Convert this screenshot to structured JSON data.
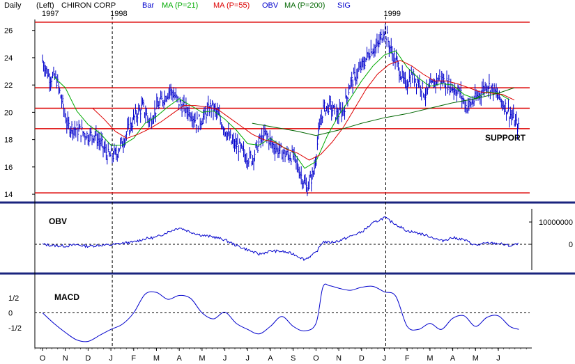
{
  "header": {
    "period": "Daily",
    "axis_side": "(Left)",
    "company": "CHIRON CORP",
    "legend": [
      {
        "label": "Bar",
        "color": "#0000cc"
      },
      {
        "label": "MA (P=21)",
        "color": "#00aa00"
      },
      {
        "label": "MA (P=55)",
        "color": "#dd0000"
      },
      {
        "label": "OBV",
        "color": "#0000cc"
      },
      {
        "label": "MA (P=200)",
        "color": "#006600"
      },
      {
        "label": "SIG",
        "color": "#0000cc"
      }
    ]
  },
  "chart_data": [
    {
      "type": "bar",
      "panel": "price",
      "description_unit": "USD per share",
      "year_labels": [
        {
          "label": "1997",
          "index": 0
        },
        {
          "label": "1998",
          "index": 3
        },
        {
          "label": "1999",
          "index": 15
        }
      ],
      "x_ticks": [
        "O",
        "N",
        "D",
        "J",
        "F",
        "M",
        "A",
        "M",
        "J",
        "J",
        "A",
        "S",
        "O",
        "N",
        "D",
        "J",
        "F",
        "M",
        "A",
        "M",
        "J"
      ],
      "y_ticks": [
        14,
        16,
        18,
        20,
        22,
        24,
        26
      ],
      "ylim": [
        13.8,
        26.8
      ],
      "support_levels": [
        14.1,
        18.8,
        20.3,
        21.8,
        26.6
      ],
      "annotation": "SUPPORT",
      "series": [
        {
          "name": "Bar",
          "points": [
            [
              0,
              23.8
            ],
            [
              0.3,
              22.6
            ],
            [
              0.6,
              22.5
            ],
            [
              0.9,
              20.5
            ],
            [
              1.1,
              19.0
            ],
            [
              1.4,
              18.8
            ],
            [
              1.7,
              18.6
            ],
            [
              2.0,
              18.3
            ],
            [
              2.3,
              18.4
            ],
            [
              2.6,
              17.6
            ],
            [
              2.9,
              16.8
            ],
            [
              3.2,
              16.9
            ],
            [
              3.5,
              17.8
            ],
            [
              3.8,
              18.8
            ],
            [
              4.1,
              19.8
            ],
            [
              4.4,
              20.4
            ],
            [
              4.7,
              19.3
            ],
            [
              5.0,
              20.3
            ],
            [
              5.3,
              21.0
            ],
            [
              5.6,
              21.7
            ],
            [
              5.9,
              20.9
            ],
            [
              6.2,
              20.3
            ],
            [
              6.5,
              20.0
            ],
            [
              6.8,
              19.2
            ],
            [
              7.1,
              19.7
            ],
            [
              7.4,
              20.5
            ],
            [
              7.7,
              19.8
            ],
            [
              8.0,
              18.8
            ],
            [
              8.3,
              17.8
            ],
            [
              8.6,
              17.5
            ],
            [
              8.9,
              16.8
            ],
            [
              9.2,
              16.6
            ],
            [
              9.5,
              17.8
            ],
            [
              9.8,
              18.4
            ],
            [
              10.1,
              17.6
            ],
            [
              10.4,
              17.2
            ],
            [
              10.7,
              16.9
            ],
            [
              11.0,
              16.8
            ],
            [
              11.3,
              15.6
            ],
            [
              11.6,
              14.4
            ],
            [
              11.9,
              15.6
            ],
            [
              12.1,
              18.2
            ],
            [
              12.3,
              20.2
            ],
            [
              12.6,
              20.5
            ],
            [
              12.9,
              19.8
            ],
            [
              13.2,
              20.1
            ],
            [
              13.5,
              22.1
            ],
            [
              13.8,
              22.8
            ],
            [
              14.1,
              23.6
            ],
            [
              14.4,
              24.6
            ],
            [
              14.7,
              24.8
            ],
            [
              15.0,
              26.1
            ],
            [
              15.3,
              24.5
            ],
            [
              15.6,
              23.4
            ],
            [
              15.9,
              22.0
            ],
            [
              16.2,
              22.7
            ],
            [
              16.5,
              22.3
            ],
            [
              16.8,
              21.3
            ],
            [
              17.1,
              22.0
            ],
            [
              17.4,
              22.5
            ],
            [
              17.7,
              22.2
            ],
            [
              18.0,
              21.8
            ],
            [
              18.3,
              21.5
            ],
            [
              18.6,
              20.4
            ],
            [
              18.9,
              20.8
            ],
            [
              19.2,
              21.4
            ],
            [
              19.5,
              22.1
            ],
            [
              19.8,
              21.6
            ],
            [
              20.1,
              20.9
            ],
            [
              20.4,
              20.2
            ],
            [
              20.7,
              19.4
            ],
            [
              20.9,
              18.8
            ]
          ]
        },
        {
          "name": "MA (P=21)",
          "points": [
            [
              0.5,
              22.6
            ],
            [
              1.0,
              21.8
            ],
            [
              1.5,
              20.1
            ],
            [
              2.0,
              19.1
            ],
            [
              2.5,
              18.5
            ],
            [
              3.0,
              17.6
            ],
            [
              3.5,
              17.6
            ],
            [
              4.0,
              18.1
            ],
            [
              4.5,
              19.2
            ],
            [
              5.0,
              19.7
            ],
            [
              5.5,
              20.4
            ],
            [
              6.0,
              21.0
            ],
            [
              6.5,
              20.5
            ],
            [
              7.0,
              20.0
            ],
            [
              7.5,
              20.1
            ],
            [
              8.0,
              19.5
            ],
            [
              8.5,
              18.7
            ],
            [
              9.0,
              17.7
            ],
            [
              9.5,
              17.6
            ],
            [
              10.0,
              18.1
            ],
            [
              10.5,
              17.5
            ],
            [
              11.0,
              17.1
            ],
            [
              11.5,
              15.9
            ],
            [
              12.0,
              16.4
            ],
            [
              12.5,
              18.3
            ],
            [
              13.0,
              19.8
            ],
            [
              13.5,
              21.0
            ],
            [
              14.0,
              22.3
            ],
            [
              14.5,
              23.4
            ],
            [
              15.0,
              24.2
            ],
            [
              15.5,
              24.5
            ],
            [
              16.0,
              23.3
            ],
            [
              16.5,
              22.5
            ],
            [
              17.0,
              21.9
            ],
            [
              17.5,
              22.1
            ],
            [
              18.0,
              22.0
            ],
            [
              18.5,
              21.3
            ],
            [
              19.0,
              21.0
            ],
            [
              19.5,
              21.5
            ],
            [
              20.0,
              21.4
            ],
            [
              20.5,
              20.9
            ]
          ]
        },
        {
          "name": "MA (P=55)",
          "points": [
            [
              2.2,
              20.3
            ],
            [
              2.7,
              19.5
            ],
            [
              3.2,
              18.6
            ],
            [
              3.7,
              18.1
            ],
            [
              4.2,
              18.4
            ],
            [
              4.7,
              18.8
            ],
            [
              5.2,
              19.3
            ],
            [
              5.7,
              19.9
            ],
            [
              6.2,
              20.5
            ],
            [
              6.7,
              20.5
            ],
            [
              7.2,
              20.4
            ],
            [
              7.7,
              20.2
            ],
            [
              8.2,
              19.6
            ],
            [
              8.7,
              19.0
            ],
            [
              9.2,
              18.4
            ],
            [
              9.7,
              18.0
            ],
            [
              10.2,
              17.8
            ],
            [
              10.7,
              17.3
            ],
            [
              11.2,
              17.0
            ],
            [
              11.7,
              16.5
            ],
            [
              12.2,
              16.9
            ],
            [
              12.7,
              17.8
            ],
            [
              13.2,
              18.9
            ],
            [
              13.7,
              20.3
            ],
            [
              14.2,
              21.7
            ],
            [
              14.7,
              22.8
            ],
            [
              15.2,
              23.5
            ],
            [
              15.7,
              23.8
            ],
            [
              16.2,
              23.4
            ],
            [
              16.7,
              22.8
            ],
            [
              17.2,
              22.3
            ],
            [
              17.7,
              22.3
            ],
            [
              18.2,
              22.1
            ],
            [
              18.7,
              21.8
            ],
            [
              19.2,
              21.5
            ],
            [
              19.7,
              21.4
            ],
            [
              20.2,
              21.3
            ],
            [
              20.7,
              20.9
            ]
          ]
        },
        {
          "name": "MA (P=200)",
          "points": [
            [
              9.2,
              19.2
            ],
            [
              10.2,
              18.9
            ],
            [
              11.2,
              18.6
            ],
            [
              12.0,
              18.3
            ],
            [
              13.0,
              18.7
            ],
            [
              14.0,
              19.2
            ],
            [
              15.0,
              19.6
            ],
            [
              16.0,
              19.9
            ],
            [
              17.0,
              20.3
            ],
            [
              18.0,
              20.7
            ],
            [
              19.0,
              21.0
            ],
            [
              20.0,
              21.4
            ],
            [
              20.7,
              21.8
            ]
          ]
        }
      ]
    },
    {
      "type": "line",
      "panel": "obv",
      "y_ticks": [
        {
          "label": "10000000",
          "value": 10000000
        },
        {
          "label": "0",
          "value": 0
        }
      ],
      "ylim": [
        -10000000,
        15000000
      ],
      "baseline": 0,
      "series": [
        {
          "name": "OBV",
          "points": [
            [
              0,
              0
            ],
            [
              0.5,
              -600000
            ],
            [
              1.0,
              -800000
            ],
            [
              1.5,
              -200000
            ],
            [
              2.0,
              -900000
            ],
            [
              2.5,
              -400000
            ],
            [
              3.0,
              -300000
            ],
            [
              3.5,
              500000
            ],
            [
              4.0,
              1000000
            ],
            [
              4.5,
              2500000
            ],
            [
              5.0,
              3200000
            ],
            [
              5.5,
              5500000
            ],
            [
              6.0,
              7500000
            ],
            [
              6.5,
              5500000
            ],
            [
              7.0,
              4000000
            ],
            [
              7.5,
              3300000
            ],
            [
              8.0,
              2000000
            ],
            [
              8.5,
              -500000
            ],
            [
              9.0,
              -2500000
            ],
            [
              9.5,
              -4500000
            ],
            [
              10.0,
              -3000000
            ],
            [
              10.5,
              -3200000
            ],
            [
              11.0,
              -4300000
            ],
            [
              11.5,
              -6800000
            ],
            [
              12.0,
              -3800000
            ],
            [
              12.3,
              1200000
            ],
            [
              12.6,
              800000
            ],
            [
              13.0,
              1500000
            ],
            [
              13.5,
              3500000
            ],
            [
              14.0,
              5500000
            ],
            [
              14.5,
              9500000
            ],
            [
              15.0,
              12000000
            ],
            [
              15.5,
              9000000
            ],
            [
              16.0,
              6000000
            ],
            [
              16.5,
              5000000
            ],
            [
              17.0,
              3500000
            ],
            [
              17.5,
              1500000
            ],
            [
              18.0,
              3000000
            ],
            [
              18.5,
              2000000
            ],
            [
              19.0,
              -500000
            ],
            [
              19.5,
              500000
            ],
            [
              20.0,
              400000
            ],
            [
              20.5,
              -700000
            ],
            [
              20.9,
              200000
            ]
          ]
        }
      ]
    },
    {
      "type": "line",
      "panel": "macd",
      "title": "MACD",
      "y_ticks": [
        {
          "label": "1/2",
          "value": 0.5
        },
        {
          "label": "0",
          "value": 0
        },
        {
          "label": "-1/2",
          "value": -0.5
        }
      ],
      "ylim": [
        -1.1,
        1.1
      ],
      "baseline": 0,
      "series": [
        {
          "name": "MACD",
          "points": [
            [
              0,
              0
            ],
            [
              0.5,
              -0.35
            ],
            [
              1.0,
              -0.65
            ],
            [
              1.5,
              -0.9
            ],
            [
              2.0,
              -0.95
            ],
            [
              2.5,
              -0.75
            ],
            [
              3.0,
              -0.55
            ],
            [
              3.5,
              -0.38
            ],
            [
              4.0,
              0.0
            ],
            [
              4.5,
              0.62
            ],
            [
              5.0,
              0.68
            ],
            [
              5.5,
              0.45
            ],
            [
              6.0,
              0.58
            ],
            [
              6.5,
              0.48
            ],
            [
              7.0,
              0.0
            ],
            [
              7.5,
              -0.2
            ],
            [
              8.0,
              0.02
            ],
            [
              8.5,
              -0.35
            ],
            [
              9.0,
              -0.55
            ],
            [
              9.5,
              -0.7
            ],
            [
              10.0,
              -0.45
            ],
            [
              10.5,
              -0.12
            ],
            [
              11.0,
              -0.45
            ],
            [
              11.5,
              -0.6
            ],
            [
              12.0,
              -0.35
            ],
            [
              12.3,
              0.85
            ],
            [
              12.6,
              0.9
            ],
            [
              13.0,
              0.82
            ],
            [
              13.5,
              0.75
            ],
            [
              14.0,
              0.85
            ],
            [
              14.5,
              0.88
            ],
            [
              15.0,
              0.7
            ],
            [
              15.5,
              0.55
            ],
            [
              16.0,
              -0.45
            ],
            [
              16.5,
              -0.55
            ],
            [
              17.0,
              -0.35
            ],
            [
              17.5,
              -0.55
            ],
            [
              18.0,
              -0.18
            ],
            [
              18.5,
              -0.1
            ],
            [
              19.0,
              -0.45
            ],
            [
              19.5,
              -0.15
            ],
            [
              20.0,
              -0.1
            ],
            [
              20.5,
              -0.45
            ],
            [
              20.9,
              -0.55
            ]
          ]
        }
      ]
    }
  ]
}
